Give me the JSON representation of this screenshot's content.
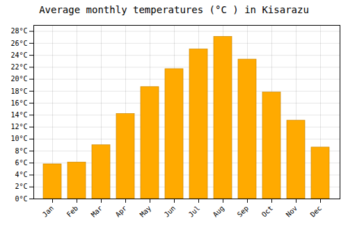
{
  "chart_data": {
    "type": "bar",
    "title": "Average monthly temperatures (°C ) in Kisarazu",
    "categories": [
      "Jan",
      "Feb",
      "Mar",
      "Apr",
      "May",
      "Jun",
      "Jul",
      "Aug",
      "Sep",
      "Oct",
      "Nov",
      "Dec"
    ],
    "values": [
      5.8,
      6.1,
      9.0,
      14.2,
      18.7,
      21.7,
      25.0,
      27.1,
      23.3,
      17.8,
      13.1,
      8.6
    ],
    "color": "#FFAA00",
    "ylim": [
      0,
      29
    ],
    "yticks": [
      {
        "value": 0,
        "label": "0°C"
      },
      {
        "value": 2,
        "label": "2°C"
      },
      {
        "value": 4,
        "label": "4°C"
      },
      {
        "value": 6,
        "label": "6°C"
      },
      {
        "value": 8,
        "label": "8°C"
      },
      {
        "value": 10,
        "label": "10°C"
      },
      {
        "value": 12,
        "label": "12°C"
      },
      {
        "value": 14,
        "label": "14°C"
      },
      {
        "value": 16,
        "label": "16°C"
      },
      {
        "value": 18,
        "label": "18°C"
      },
      {
        "value": 20,
        "label": "20°C"
      },
      {
        "value": 22,
        "label": "22°C"
      },
      {
        "value": 24,
        "label": "24°C"
      },
      {
        "value": 26,
        "label": "26°C"
      },
      {
        "value": 28,
        "label": "28°C"
      }
    ],
    "grid": true
  }
}
